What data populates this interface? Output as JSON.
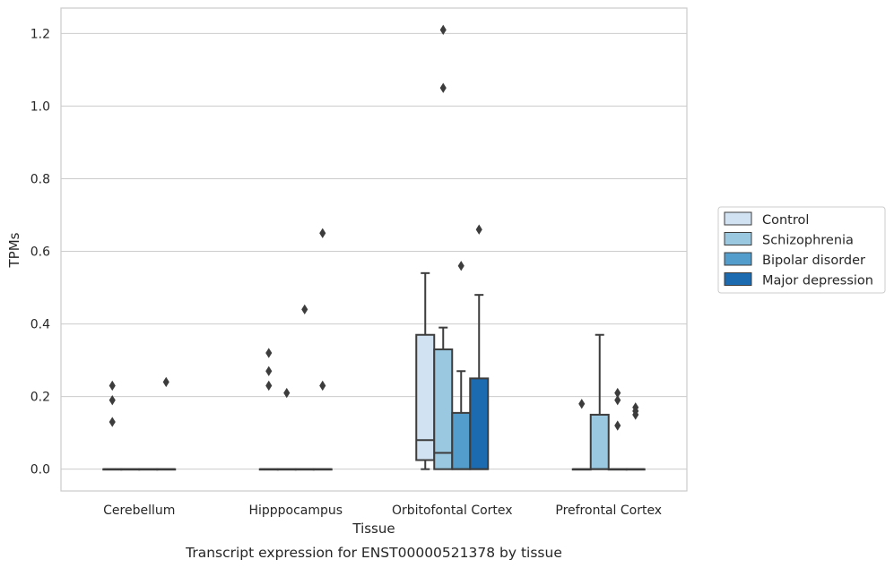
{
  "chart_data": {
    "type": "box",
    "xlabel": "Tissue",
    "ylabel": "TPMs",
    "caption": "Transcript expression for ENST00000521378 by tissue",
    "ylim": [
      -0.06,
      1.27
    ],
    "yticks": [
      0.0,
      0.2,
      0.4,
      0.6,
      0.8,
      1.0,
      1.2
    ],
    "ytick_labels": [
      "0.0",
      "0.2",
      "0.4",
      "0.6",
      "0.8",
      "1.0",
      "1.2"
    ],
    "grid": "horizontal",
    "legend_position": "right",
    "categories": [
      "Cerebellum",
      "Hipppocampus",
      "Orbitofontal Cortex",
      "Prefrontal Cortex"
    ],
    "series": [
      {
        "name": "Control",
        "color": "#d1e2f2",
        "boxes": [
          {
            "category": "Cerebellum",
            "whislo": 0.0,
            "q1": 0.0,
            "med": 0.0,
            "q3": 0.0,
            "whishi": 0.0,
            "fliers": [
              0.13,
              0.19,
              0.23
            ]
          },
          {
            "category": "Hipppocampus",
            "whislo": 0.0,
            "q1": 0.0,
            "med": 0.0,
            "q3": 0.0,
            "whishi": 0.0,
            "fliers": [
              0.23,
              0.27,
              0.32
            ]
          },
          {
            "category": "Orbitofontal Cortex",
            "whislo": 0.0,
            "q1": 0.025,
            "med": 0.08,
            "q3": 0.37,
            "whishi": 0.54,
            "fliers": []
          },
          {
            "category": "Prefrontal Cortex",
            "whislo": 0.0,
            "q1": 0.0,
            "med": 0.0,
            "q3": 0.0,
            "whishi": 0.0,
            "fliers": [
              0.18
            ]
          }
        ]
      },
      {
        "name": "Schizophrenia",
        "color": "#9ac8e0",
        "boxes": [
          {
            "category": "Cerebellum",
            "whislo": 0.0,
            "q1": 0.0,
            "med": 0.0,
            "q3": 0.0,
            "whishi": 0.0,
            "fliers": []
          },
          {
            "category": "Hipppocampus",
            "whislo": 0.0,
            "q1": 0.0,
            "med": 0.0,
            "q3": 0.0,
            "whishi": 0.0,
            "fliers": [
              0.21
            ]
          },
          {
            "category": "Orbitofontal Cortex",
            "whislo": 0.0,
            "q1": 0.0,
            "med": 0.045,
            "q3": 0.33,
            "whishi": 0.39,
            "fliers": [
              1.05,
              1.21
            ]
          },
          {
            "category": "Prefrontal Cortex",
            "whislo": 0.0,
            "q1": 0.0,
            "med": 0.0,
            "q3": 0.15,
            "whishi": 0.37,
            "fliers": []
          }
        ]
      },
      {
        "name": "Bipolar disorder",
        "color": "#529dcc",
        "boxes": [
          {
            "category": "Cerebellum",
            "whislo": 0.0,
            "q1": 0.0,
            "med": 0.0,
            "q3": 0.0,
            "whishi": 0.0,
            "fliers": []
          },
          {
            "category": "Hipppocampus",
            "whislo": 0.0,
            "q1": 0.0,
            "med": 0.0,
            "q3": 0.0,
            "whishi": 0.0,
            "fliers": [
              0.44
            ]
          },
          {
            "category": "Orbitofontal Cortex",
            "whislo": 0.0,
            "q1": 0.0,
            "med": 0.0,
            "q3": 0.155,
            "whishi": 0.27,
            "fliers": [
              0.56
            ]
          },
          {
            "category": "Prefrontal Cortex",
            "whislo": 0.0,
            "q1": 0.0,
            "med": 0.0,
            "q3": 0.0,
            "whishi": 0.0,
            "fliers": [
              0.12,
              0.19,
              0.21
            ]
          }
        ]
      },
      {
        "name": "Major depression",
        "color": "#1c6aaf",
        "boxes": [
          {
            "category": "Cerebellum",
            "whislo": 0.0,
            "q1": 0.0,
            "med": 0.0,
            "q3": 0.0,
            "whishi": 0.0,
            "fliers": [
              0.24
            ]
          },
          {
            "category": "Hipppocampus",
            "whislo": 0.0,
            "q1": 0.0,
            "med": 0.0,
            "q3": 0.0,
            "whishi": 0.0,
            "fliers": [
              0.23,
              0.65
            ]
          },
          {
            "category": "Orbitofontal Cortex",
            "whislo": 0.0,
            "q1": 0.0,
            "med": 0.0,
            "q3": 0.25,
            "whishi": 0.48,
            "fliers": [
              0.66
            ]
          },
          {
            "category": "Prefrontal Cortex",
            "whislo": 0.0,
            "q1": 0.0,
            "med": 0.0,
            "q3": 0.0,
            "whishi": 0.0,
            "fliers": [
              0.15,
              0.16,
              0.17
            ]
          }
        ]
      }
    ]
  }
}
